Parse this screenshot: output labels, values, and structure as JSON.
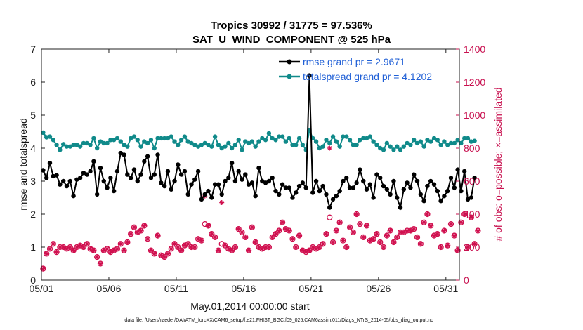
{
  "chart_data": {
    "type": "line",
    "title": "Tropics 30992 / 31775 = 97.536%",
    "subtitle": "SAT_U_WIND_COMPONENT @ 525 hPa",
    "xlabel": "May.01,2014 00:00:00 start",
    "ylabel_left": "rmse and totalspread",
    "ylabel_right": "# of obs: o=possible; ×=assimilated",
    "xlim": [
      1,
      32
    ],
    "ylim_left": [
      0,
      7
    ],
    "ylim_right": [
      0,
      1400
    ],
    "x_tick_labels": [
      "05/01",
      "05/06",
      "05/11",
      "05/16",
      "05/21",
      "05/26",
      "05/31"
    ],
    "y_left_ticks": [
      "0",
      "1",
      "2",
      "3",
      "4",
      "5",
      "6",
      "7"
    ],
    "y_right_ticks": [
      "0",
      "200",
      "400",
      "600",
      "800",
      "1000",
      "1200",
      "1400"
    ],
    "legend": [
      "rmse grand pr = 2.9671",
      "totalspread grand pr = 4.1202"
    ],
    "colors": {
      "rmse": "#000000",
      "spread": "#108a8a",
      "obs": "#d0104f",
      "legend_text": "#1f5fd6",
      "right_axis": "#c8104f"
    },
    "series": [
      {
        "name": "rmse",
        "axis": "left",
        "values": [
          3.33,
          3.1,
          3.55,
          3.15,
          3.18,
          2.9,
          3.0,
          2.85,
          3.0,
          2.55,
          3.05,
          3.1,
          3.25,
          3.2,
          3.3,
          3.6,
          2.6,
          3.4,
          3.0,
          2.8,
          3.1,
          2.7,
          3.3,
          3.85,
          3.8,
          3.2,
          3.1,
          3.35,
          3.0,
          3.2,
          3.6,
          3.75,
          3.1,
          3.2,
          3.8,
          2.95,
          2.85,
          3.3,
          2.75,
          3.0,
          3.5,
          3.2,
          3.3,
          2.6,
          2.9,
          3.05,
          3.3,
          2.45,
          2.6,
          2.7,
          2.5,
          2.9,
          2.9,
          2.6,
          3.0,
          3.1,
          3.55,
          3.0,
          3.3,
          3.05,
          3.2,
          2.9,
          2.95,
          2.55,
          3.4,
          3.0,
          2.95,
          3.0,
          3.1,
          2.7,
          2.6,
          2.9,
          2.8,
          2.8,
          2.5,
          2.65,
          2.85,
          2.95,
          2.8,
          6.2,
          2.65,
          3.0,
          2.7,
          2.85,
          2.6,
          2.2,
          2.45,
          2.55,
          2.7,
          3.0,
          3.1,
          2.8,
          2.8,
          2.95,
          3.35,
          3.0,
          2.75,
          2.9,
          2.5,
          3.2,
          3.1,
          2.85,
          2.75,
          2.6,
          3.0,
          2.5,
          2.2,
          2.75,
          2.95,
          2.8,
          3.2,
          3.0,
          2.6,
          2.4,
          2.85,
          3.0,
          2.9,
          2.7,
          2.4,
          2.55,
          2.7,
          3.1,
          2.8,
          3.35,
          2.7,
          3.3,
          2.45,
          2.5,
          3.1
        ]
      },
      {
        "name": "totalspread",
        "axis": "left",
        "values": [
          4.47,
          4.33,
          4.35,
          4.25,
          4.1,
          3.95,
          4.12,
          4.05,
          4.05,
          4.1,
          4.1,
          4.05,
          4.15,
          4.15,
          4.1,
          4.3,
          4.0,
          4.2,
          4.15,
          4.15,
          4.25,
          4.25,
          4.3,
          4.2,
          4.1,
          4.05,
          4.3,
          4.35,
          4.25,
          4.05,
          4.2,
          4.15,
          4.25,
          4.0,
          4.3,
          4.3,
          4.3,
          4.3,
          4.35,
          4.2,
          4.1,
          4.25,
          4.35,
          4.2,
          4.15,
          4.1,
          4.05,
          4.1,
          4.15,
          4.1,
          4.05,
          4.35,
          4.1,
          4.0,
          4.05,
          4.15,
          4.0,
          4.1,
          4.25,
          3.95,
          4.2,
          4.15,
          4.2,
          4.05,
          4.2,
          4.3,
          4.25,
          4.45,
          4.3,
          4.25,
          4.35,
          4.35,
          4.2,
          4.3,
          4.1,
          4.1,
          4.3,
          4.1,
          3.95,
          4.55,
          4.3,
          4.2,
          4.0,
          4.05,
          4.25,
          4.15,
          4.35,
          4.2,
          4.05,
          4.35,
          4.35,
          4.25,
          4.1,
          4.1,
          4.25,
          4.3,
          4.3,
          4.35,
          4.2,
          4.1,
          4.0,
          3.95,
          4.15,
          4.05,
          3.95,
          4.05,
          3.95,
          4.05,
          4.15,
          4.1,
          4.25,
          4.15,
          4.2,
          4.05,
          4.25,
          4.2,
          4.3,
          4.25,
          4.1,
          4.2,
          4.1,
          4.15,
          4.15,
          4.25,
          4.15,
          4.3,
          4.3,
          4.2,
          4.22
        ]
      },
      {
        "name": "obs_possible",
        "axis": "right",
        "values": [
          70,
          160,
          190,
          220,
          170,
          200,
          200,
          190,
          200,
          180,
          200,
          210,
          200,
          220,
          190,
          180,
          140,
          100,
          180,
          190,
          170,
          180,
          190,
          220,
          180,
          230,
          280,
          320,
          290,
          300,
          330,
          250,
          180,
          160,
          270,
          150,
          140,
          160,
          190,
          220,
          200,
          180,
          210,
          220,
          200,
          200,
          250,
          240,
          340,
          330,
          280,
          260,
          180,
          220,
          210,
          190,
          180,
          200,
          310,
          290,
          260,
          180,
          320,
          230,
          200,
          190,
          200,
          200,
          260,
          280,
          300,
          350,
          310,
          300,
          250,
          200,
          270,
          180,
          170,
          180,
          200,
          190,
          200,
          220,
          280,
          380,
          230,
          300,
          350,
          240,
          200,
          320,
          290,
          400,
          340,
          260,
          330,
          240,
          250,
          280,
          230,
          200,
          270,
          300,
          230,
          260,
          290,
          290,
          300,
          300,
          310,
          260,
          220,
          350,
          400,
          330,
          270,
          280,
          200,
          300,
          210,
          340,
          270,
          180,
          350,
          400,
          200,
          380,
          220,
          300
        ]
      },
      {
        "name": "obs_assimilated",
        "axis": "right",
        "values": [
          70,
          160,
          190,
          220,
          170,
          200,
          200,
          190,
          200,
          180,
          200,
          210,
          200,
          220,
          190,
          180,
          140,
          100,
          180,
          190,
          170,
          180,
          190,
          220,
          180,
          230,
          280,
          320,
          290,
          300,
          330,
          250,
          180,
          160,
          270,
          150,
          140,
          160,
          190,
          220,
          200,
          180,
          210,
          220,
          200,
          200,
          250,
          240,
          510,
          330,
          280,
          260,
          180,
          470,
          210,
          190,
          180,
          200,
          310,
          290,
          260,
          180,
          320,
          230,
          200,
          190,
          200,
          200,
          260,
          280,
          300,
          350,
          310,
          300,
          250,
          200,
          270,
          180,
          170,
          180,
          200,
          190,
          200,
          220,
          280,
          800,
          230,
          300,
          350,
          240,
          200,
          320,
          290,
          400,
          340,
          260,
          330,
          240,
          250,
          280,
          230,
          200,
          270,
          300,
          230,
          260,
          290,
          290,
          300,
          300,
          310,
          260,
          220,
          350,
          400,
          330,
          270,
          280,
          200,
          300,
          210,
          340,
          270,
          180,
          350,
          400,
          200,
          380,
          220,
          300
        ]
      }
    ]
  },
  "footer": "data file: /Users/raeder/DAI/ATM_forcXX/CAM6_setup/f.e21.FHIST_BGC.f09_025.CAM6assim.011/Diags_NTrS_2014-05/obs_diag_output.nc"
}
